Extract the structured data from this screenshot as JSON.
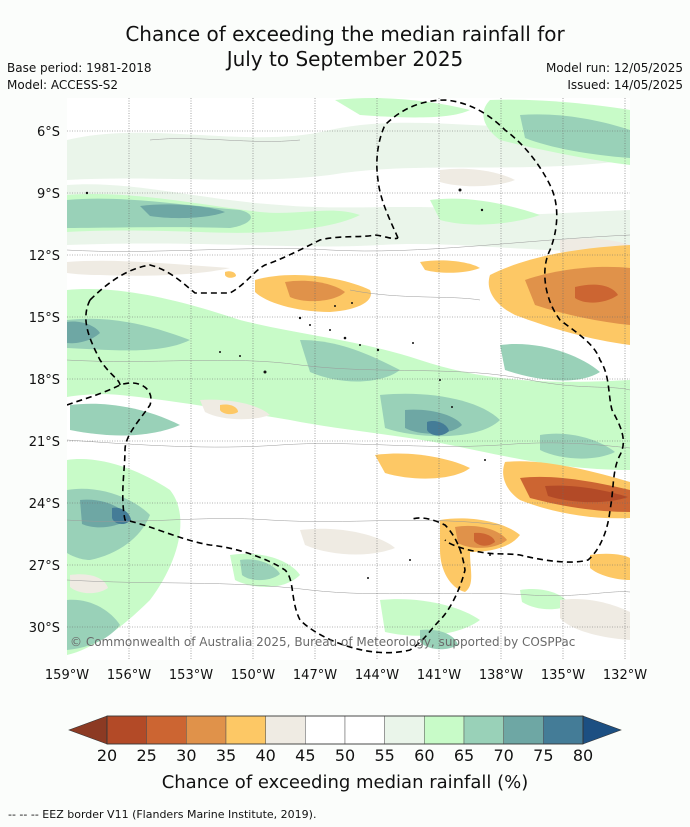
{
  "header": {
    "title_line1": "Chance of exceeding the median rainfall for",
    "title_line2": "July to September 2025",
    "base_period": "Base period: 1981-2018",
    "model": "Model: ACCESS-S2",
    "model_run": "Model run: 12/05/2025",
    "issued": "Issued: 14/05/2025"
  },
  "map": {
    "copyright": "© Commonwealth of Australia 2025, Bureau of Meteorology, supported by COSPPac",
    "lat_ticks": [
      "6°S",
      "9°S",
      "12°S",
      "15°S",
      "18°S",
      "21°S",
      "24°S",
      "27°S",
      "30°S"
    ],
    "lon_ticks": [
      "159°W",
      "156°W",
      "153°W",
      "150°W",
      "147°W",
      "144°W",
      "141°W",
      "138°W",
      "135°W",
      "132°W"
    ]
  },
  "colorbar": {
    "title": "Chance of exceeding median rainfall (%)",
    "ticks": [
      "20",
      "25",
      "30",
      "35",
      "40",
      "45",
      "50",
      "55",
      "60",
      "65",
      "70",
      "75",
      "80"
    ],
    "colors": [
      "#8c3a23",
      "#b34a27",
      "#cc6532",
      "#e0924a",
      "#fdc865",
      "#efebe3",
      "#ffffff",
      "#ffffff",
      "#eaf5ea",
      "#c8fbc8",
      "#99d1b8",
      "#6ea7a4",
      "#447c97",
      "#1c4f82"
    ]
  },
  "footer": {
    "legend_text": "--  --  -- EEZ border V11 (Flanders Marine Institute, 2019)."
  }
}
